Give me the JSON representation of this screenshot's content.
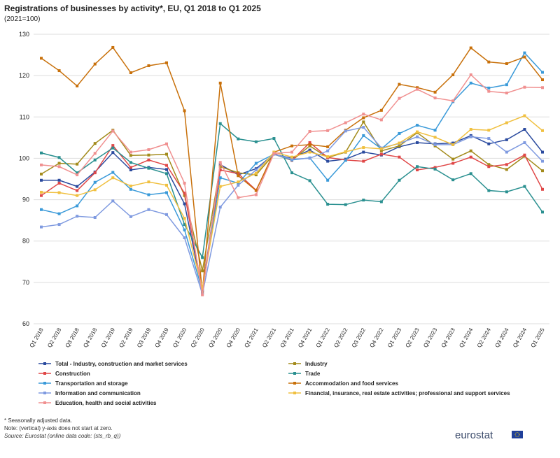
{
  "chart_data": {
    "type": "line",
    "title": "Registrations of businesses by activity*, EU, Q1 2018 to Q1 2025",
    "subtitle": "(2021=100)",
    "categories": [
      "Q1 2018",
      "Q2 2018",
      "Q3 2018",
      "Q4 2018",
      "Q1 2019",
      "Q2 2019",
      "Q3 2019",
      "Q4 2019",
      "Q1 2020",
      "Q2 2020",
      "Q3 2020",
      "Q4 2020",
      "Q1 2021",
      "Q2 2021",
      "Q3 2021",
      "Q4 2021",
      "Q1 2022",
      "Q2 2022",
      "Q3 2022",
      "Q4 2022",
      "Q1 2023",
      "Q2 2023",
      "Q3 2023",
      "Q4 2023",
      "Q1 2024",
      "Q2 2024",
      "Q3 2024",
      "Q4 2024",
      "Q1 2025"
    ],
    "ylim": [
      60,
      130
    ],
    "yticks": [
      60,
      70,
      80,
      90,
      100,
      110,
      120,
      130
    ],
    "grid": true,
    "series": [
      {
        "name": "Total - Industry, construction and market services",
        "color": "#2a4a9e",
        "values": [
          94.7,
          94.7,
          93.2,
          96.7,
          101.4,
          97.2,
          97.8,
          97.3,
          89,
          68,
          98.5,
          96,
          97.5,
          101,
          100,
          102,
          99.3,
          99.8,
          101.5,
          100.8,
          102.8,
          103.8,
          103.5,
          103.7,
          105.5,
          103.5,
          104.5,
          107,
          101.5
        ]
      },
      {
        "name": "Industry",
        "color": "#a38b1c",
        "values": [
          96.2,
          98.8,
          98.6,
          103.6,
          106.8,
          100.7,
          100.8,
          101,
          91,
          72.8,
          98,
          96.5,
          96,
          101,
          99.5,
          103,
          100.2,
          101.5,
          108.8,
          101.8,
          103,
          106.2,
          103,
          99.8,
          101.8,
          98.5,
          97.3,
          100.5,
          97
        ]
      },
      {
        "name": "Construction",
        "color": "#e04848",
        "values": [
          91,
          94,
          92.2,
          96.5,
          103.1,
          97.8,
          99.6,
          98.3,
          91.6,
          68,
          97.2,
          96.3,
          92.3,
          101.2,
          99.5,
          103.8,
          100.2,
          99.6,
          99.3,
          101,
          100.3,
          97.2,
          97.8,
          98.8,
          100.3,
          98,
          98.5,
          100.8,
          92.5
        ]
      },
      {
        "name": "Trade",
        "color": "#2a9090",
        "values": [
          101.3,
          100.2,
          96.5,
          99.6,
          102.5,
          99,
          97.6,
          96.3,
          84,
          76,
          108.4,
          104.7,
          104,
          104.8,
          96.5,
          94.6,
          88.9,
          88.8,
          89.9,
          89.5,
          94.7,
          98,
          97.4,
          94.8,
          96.3,
          92.2,
          91.9,
          93.2,
          87
        ]
      },
      {
        "name": "Transportation and storage",
        "color": "#3a9ad9",
        "values": [
          87.6,
          86.6,
          88.5,
          94.2,
          96.6,
          92.5,
          91.2,
          91.7,
          82.7,
          68,
          95.3,
          94,
          98.8,
          101,
          99.6,
          100.1,
          94.7,
          99.5,
          105.5,
          102.3,
          106,
          108,
          106.8,
          113.7,
          118.2,
          117,
          117.8,
          125.5,
          120.8
        ]
      },
      {
        "name": "Accommodation and food services",
        "color": "#c8700a",
        "values": [
          124.2,
          121.2,
          117.5,
          122.8,
          126.8,
          120.7,
          122.4,
          123.1,
          111.5,
          67.5,
          118.2,
          95.8,
          92.2,
          101.5,
          103,
          103.3,
          102.8,
          106.8,
          109.8,
          111.6,
          117.9,
          117.1,
          116,
          120.2,
          126.7,
          123.3,
          122.9,
          124.5,
          119
        ]
      },
      {
        "name": "Information and communication",
        "color": "#7f9ae0",
        "values": [
          83.4,
          84,
          86,
          85.7,
          89.7,
          85.9,
          87.6,
          86.4,
          80.8,
          67.2,
          88.2,
          93.5,
          97.2,
          101,
          99.8,
          100,
          101.8,
          106.6,
          107.5,
          102.5,
          103.6,
          105.2,
          103.3,
          103.3,
          105.2,
          104.8,
          101.5,
          103.8,
          99.3
        ]
      },
      {
        "name": "Financial, insurance, real estate activities; professional and support services",
        "color": "#f0c040",
        "values": [
          91.8,
          91.7,
          91,
          92.4,
          95.3,
          93.3,
          94.3,
          93.5,
          85.5,
          68.5,
          93.2,
          94.3,
          96.4,
          101.5,
          100.3,
          101.5,
          100.4,
          101.6,
          102.6,
          102.3,
          103.7,
          106.4,
          105.1,
          103.3,
          107,
          106.8,
          108.6,
          110.3,
          106.7
        ]
      },
      {
        "name": "Education,  health and social activities",
        "color": "#f09090",
        "values": [
          98.4,
          98,
          96,
          101.2,
          106.6,
          101.5,
          102.1,
          103.5,
          94,
          67,
          99,
          90.5,
          91.2,
          101.2,
          101.5,
          106.5,
          106.7,
          108.6,
          110.7,
          109.3,
          114.5,
          116.7,
          114.6,
          113.9,
          120.2,
          116.2,
          115.8,
          117.2,
          117.1
        ]
      }
    ],
    "footnotes": [
      "* Seasonally adjusted data.",
      "Note: (vertical) y-axis does not start at zero.",
      "Source: Eurostat (online data code: (sts_rb_q))"
    ],
    "logo": "eurostat"
  }
}
